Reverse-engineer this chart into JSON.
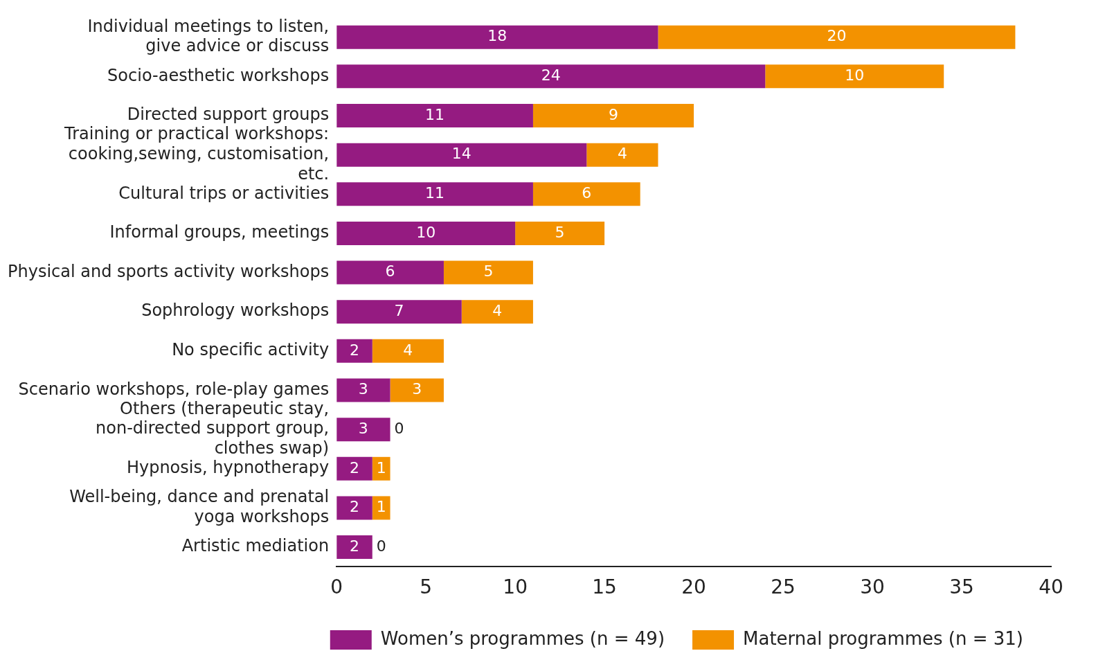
{
  "chart_data": {
    "type": "bar",
    "orientation": "horizontal",
    "stacked": true,
    "categories": [
      "Individual meetings to listen, give advice or discuss",
      "Socio-aesthetic workshops",
      "Directed support groups",
      "Training or practical workshops: cooking,sewing, customisation, etc.",
      "Cultural trips or activities",
      "Informal groups, meetings",
      "Physical and sports activity workshops",
      "Sophrology workshops",
      "No specific activity",
      "Scenario workshops, role-play games",
      "Others (therapeutic stay, non-directed support group, clothes swap)",
      "Hypnosis, hypnotherapy",
      "Well-being, dance and prenatal yoga workshops",
      "Artistic mediation"
    ],
    "series": [
      {
        "name": "Women’s programmes (n = 49)",
        "color": "#951b81",
        "values": [
          18,
          24,
          11,
          14,
          11,
          10,
          6,
          7,
          2,
          3,
          3,
          2,
          2,
          2
        ]
      },
      {
        "name": "Maternal programmes (n = 31)",
        "color": "#f39200",
        "values": [
          20,
          10,
          9,
          4,
          6,
          5,
          5,
          4,
          4,
          3,
          0,
          1,
          1,
          0
        ]
      }
    ],
    "xlim": [
      0,
      40
    ],
    "xticks": [
      0,
      5,
      10,
      15,
      20,
      25,
      30,
      35,
      40
    ],
    "grid": false,
    "legend": "bottom",
    "data_labels": true
  }
}
